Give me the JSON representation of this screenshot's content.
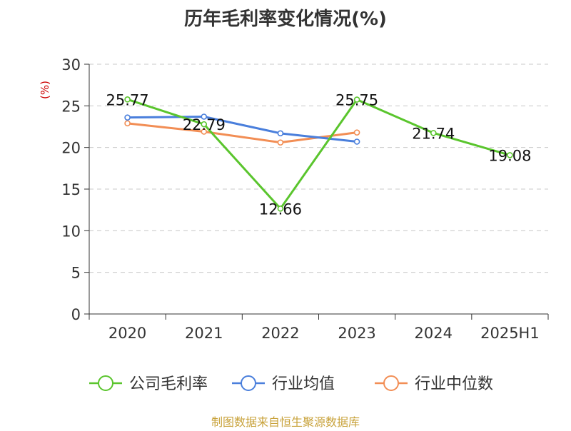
{
  "chart_data": {
    "type": "line",
    "title": "历年毛利率变化情况(%)",
    "ylabel": "(%)",
    "categories": [
      "2020",
      "2021",
      "2022",
      "2023",
      "2024",
      "2025H1"
    ],
    "ylim": [
      0,
      30
    ],
    "yticks": [
      0,
      5,
      10,
      15,
      20,
      25,
      30
    ],
    "grid": true,
    "legend_position": "bottom",
    "series": [
      {
        "name": "公司毛利率",
        "color": "#5ac52d",
        "values": [
          25.77,
          22.79,
          12.66,
          25.75,
          21.74,
          19.08
        ],
        "labels": [
          "25.77",
          "22.79",
          "12.66",
          "25.75",
          "21.74",
          "19.08"
        ]
      },
      {
        "name": "行业均值",
        "color": "#4a7fdc",
        "values": [
          23.6,
          23.7,
          21.7,
          20.7,
          null,
          null
        ]
      },
      {
        "name": "行业中位数",
        "color": "#f28e55",
        "values": [
          22.9,
          21.9,
          20.6,
          21.8,
          null,
          null
        ]
      }
    ],
    "source": "制图数据来自恒生聚源数据库"
  }
}
